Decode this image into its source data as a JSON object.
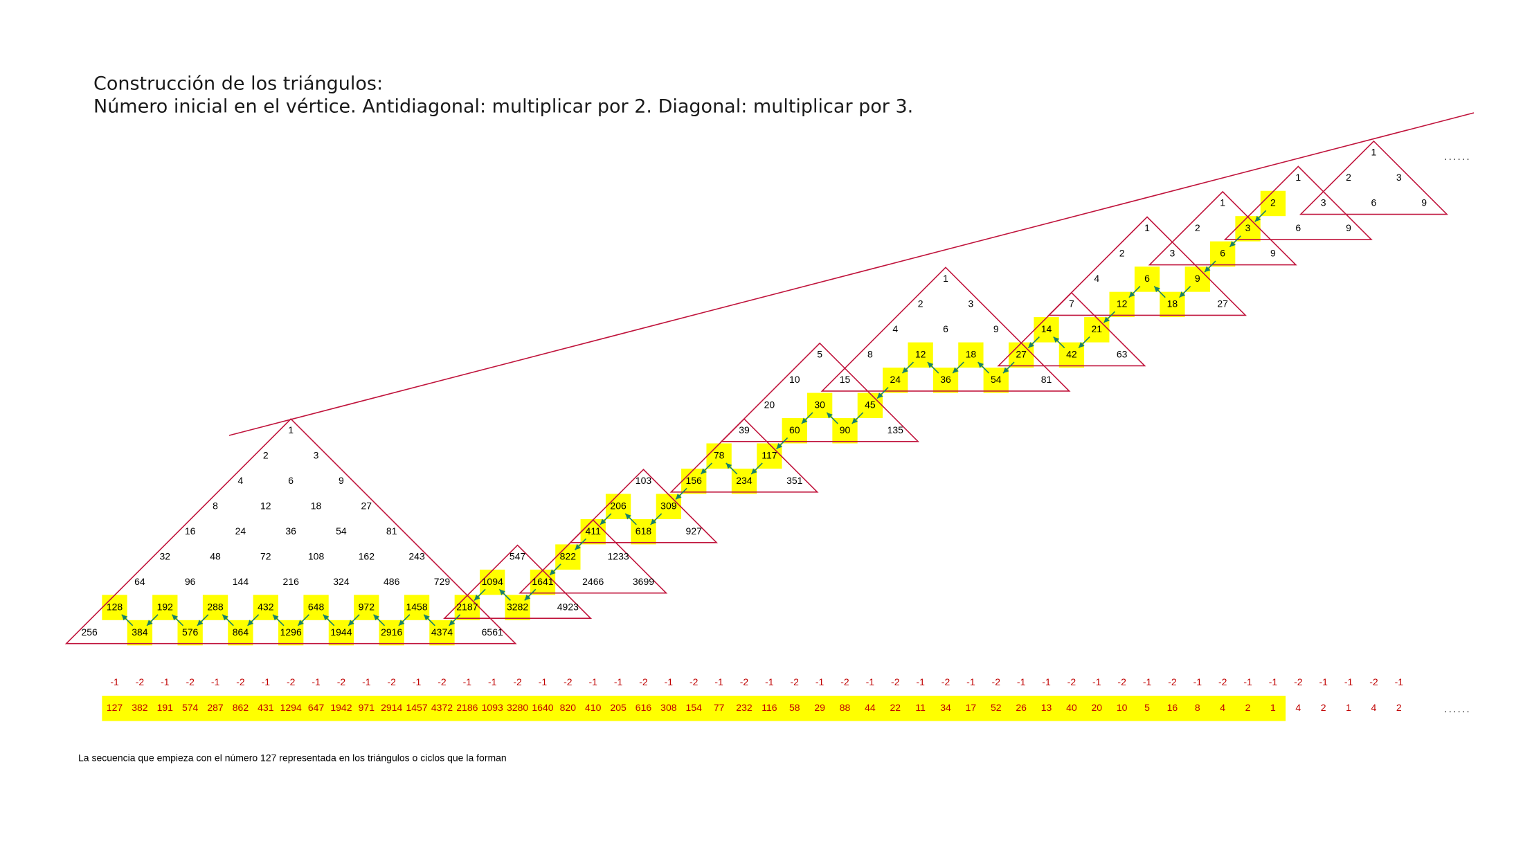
{
  "title_lines": [
    "Construcción de los triángulos:",
    "Número inicial en el vértice. Antidiagonal: multiplicar por 2. Diagonal: multiplicar por 3."
  ],
  "triangles": [
    {
      "rows": [
        [
          {
            "value": 1
          }
        ],
        [
          {
            "value": 2
          },
          {
            "value": 3
          }
        ],
        [
          {
            "value": 4
          },
          {
            "value": 6
          },
          {
            "value": 9
          }
        ],
        [
          {
            "value": 8
          },
          {
            "value": 12
          },
          {
            "value": 18
          },
          {
            "value": 27
          }
        ],
        [
          {
            "value": 16
          },
          {
            "value": 24
          },
          {
            "value": 36
          },
          {
            "value": 54
          },
          {
            "value": 81
          }
        ],
        [
          {
            "value": 32
          },
          {
            "value": 48
          },
          {
            "value": 72
          },
          {
            "value": 108
          },
          {
            "value": 162
          },
          {
            "value": 243
          }
        ],
        [
          {
            "value": 64
          },
          {
            "value": 96
          },
          {
            "value": 144
          },
          {
            "value": 216
          },
          {
            "value": 324
          },
          {
            "value": 486
          },
          {
            "value": 729
          }
        ],
        [
          {
            "value": 128,
            "highlighted": true
          },
          {
            "value": 192,
            "highlighted": true
          },
          {
            "value": 288,
            "highlighted": true
          },
          {
            "value": 432,
            "highlighted": true
          },
          {
            "value": 648,
            "highlighted": true
          },
          {
            "value": 972,
            "highlighted": true
          },
          {
            "value": 1458,
            "highlighted": true
          },
          {
            "value": 2187,
            "highlighted": true
          }
        ],
        [
          {
            "value": 256
          },
          {
            "value": 384,
            "highlighted": true
          },
          {
            "value": 576,
            "highlighted": true
          },
          {
            "value": 864,
            "highlighted": true
          },
          {
            "value": 1296,
            "highlighted": true
          },
          {
            "value": 1944,
            "highlighted": true
          },
          {
            "value": 2916,
            "highlighted": true
          },
          {
            "value": 4374,
            "highlighted": true
          },
          {
            "value": 6561
          }
        ]
      ]
    },
    {
      "rows": [
        [
          {
            "value": 547
          }
        ],
        [
          {
            "value": 1094,
            "highlighted": true
          },
          {
            "value": 1641,
            "highlighted": true
          }
        ],
        [
          {
            "value": 3282,
            "highlighted": true
          },
          {
            "value": 4923
          }
        ]
      ]
    },
    {
      "rows": [
        [
          {
            "value": 411,
            "highlighted": true
          }
        ],
        [
          {
            "value": 822,
            "highlighted": true
          },
          {
            "value": 1233
          }
        ],
        [
          {
            "value": 2466
          },
          {
            "value": 3699
          }
        ]
      ]
    },
    {
      "rows": [
        [
          {
            "value": 103
          }
        ],
        [
          {
            "value": 206,
            "highlighted": true
          },
          {
            "value": 309,
            "highlighted": true
          }
        ],
        [
          {
            "value": 618,
            "highlighted": true
          },
          {
            "value": 927
          }
        ]
      ]
    },
    {
      "rows": [
        [
          {
            "value": 39
          }
        ],
        [
          {
            "value": 78,
            "highlighted": true
          },
          {
            "value": 117,
            "highlighted": true
          }
        ],
        [
          {
            "value": 156,
            "highlighted": true
          },
          {
            "value": 234,
            "highlighted": true
          },
          {
            "value": 351
          }
        ]
      ]
    },
    {
      "rows": [
        [
          {
            "value": 5
          }
        ],
        [
          {
            "value": 10
          },
          {
            "value": 15
          }
        ],
        [
          {
            "value": 20
          },
          {
            "value": 30,
            "highlighted": true
          },
          {
            "value": 45,
            "highlighted": true
          }
        ],
        [
          {
            "value": 60,
            "highlighted": true
          },
          {
            "value": 90,
            "highlighted": true
          },
          {
            "value": 135
          }
        ]
      ]
    },
    {
      "rows": [
        [
          {
            "value": 1
          }
        ],
        [
          {
            "value": 2
          },
          {
            "value": 3
          }
        ],
        [
          {
            "value": 4
          },
          {
            "value": 6
          },
          {
            "value": 9
          }
        ],
        [
          {
            "value": 8
          },
          {
            "value": 12,
            "highlighted": true
          },
          {
            "value": 18,
            "highlighted": true
          },
          {
            "value": 27,
            "highlighted": true
          }
        ],
        [
          {
            "value": 24,
            "highlighted": true
          },
          {
            "value": 36,
            "highlighted": true
          },
          {
            "value": 54,
            "highlighted": true
          },
          {
            "value": 81
          }
        ]
      ]
    },
    {
      "rows": [
        [
          {
            "value": 7
          }
        ],
        [
          {
            "value": 14,
            "highlighted": true
          },
          {
            "value": 21,
            "highlighted": true
          }
        ],
        [
          {
            "value": 42,
            "highlighted": true
          },
          {
            "value": 63
          }
        ]
      ]
    },
    {
      "rows": [
        [
          {
            "value": 1
          }
        ],
        [
          {
            "value": 2
          },
          {
            "value": 3
          }
        ],
        [
          {
            "value": 4
          },
          {
            "value": 6,
            "highlighted": true
          },
          {
            "value": 9,
            "highlighted": true
          }
        ],
        [
          {
            "value": 12,
            "highlighted": true
          },
          {
            "value": 18,
            "highlighted": true
          },
          {
            "value": 27
          }
        ]
      ]
    },
    {
      "rows": [
        [
          {
            "value": 1
          }
        ],
        [
          {
            "value": 2
          },
          {
            "value": 3,
            "highlighted": true
          }
        ],
        [
          {
            "value": 6,
            "highlighted": true
          },
          {
            "value": 9
          }
        ]
      ]
    },
    {
      "rows": [
        [
          {
            "value": 1
          }
        ],
        [
          {
            "value": 2,
            "highlighted": true
          },
          {
            "value": 3
          }
        ],
        [
          {
            "value": 6
          },
          {
            "value": 9
          }
        ]
      ]
    },
    {
      "rows": [
        [
          {
            "value": 1
          }
        ],
        [
          {
            "value": 2
          },
          {
            "value": 3
          }
        ],
        [
          {
            "value": 6
          },
          {
            "value": 9
          }
        ]
      ]
    }
  ],
  "sequence": {
    "differences": [
      -1,
      -2,
      -1,
      -2,
      -1,
      -2,
      -1,
      -2,
      -1,
      -2,
      -1,
      -2,
      -1,
      -2,
      -1,
      -1,
      -2,
      -1,
      -2,
      -1,
      -1,
      -2,
      -1,
      -2,
      -1,
      -2,
      -1,
      -2,
      -1,
      -2,
      -1,
      -2,
      -1,
      -2,
      -1,
      -2,
      -1,
      -1,
      -2,
      -1,
      -2,
      -1,
      -2,
      -1,
      -2,
      -1,
      -1,
      -2,
      -1,
      -1,
      -2,
      -1
    ],
    "values": [
      127,
      382,
      191,
      574,
      287,
      862,
      431,
      1294,
      647,
      1942,
      971,
      2914,
      1457,
      4372,
      2186,
      1093,
      3280,
      1640,
      820,
      410,
      205,
      616,
      308,
      154,
      77,
      232,
      116,
      58,
      29,
      88,
      44,
      22,
      11,
      34,
      17,
      52,
      26,
      13,
      40,
      20,
      10,
      5,
      16,
      8,
      4,
      2,
      1
    ],
    "cycle_values": [
      4,
      2,
      1,
      4,
      2
    ]
  },
  "ellipsis": [
    "......",
    "......"
  ],
  "caption": "La secuencia que empieza con el número 127 representada en los triángulos o ciclos que la forman"
}
